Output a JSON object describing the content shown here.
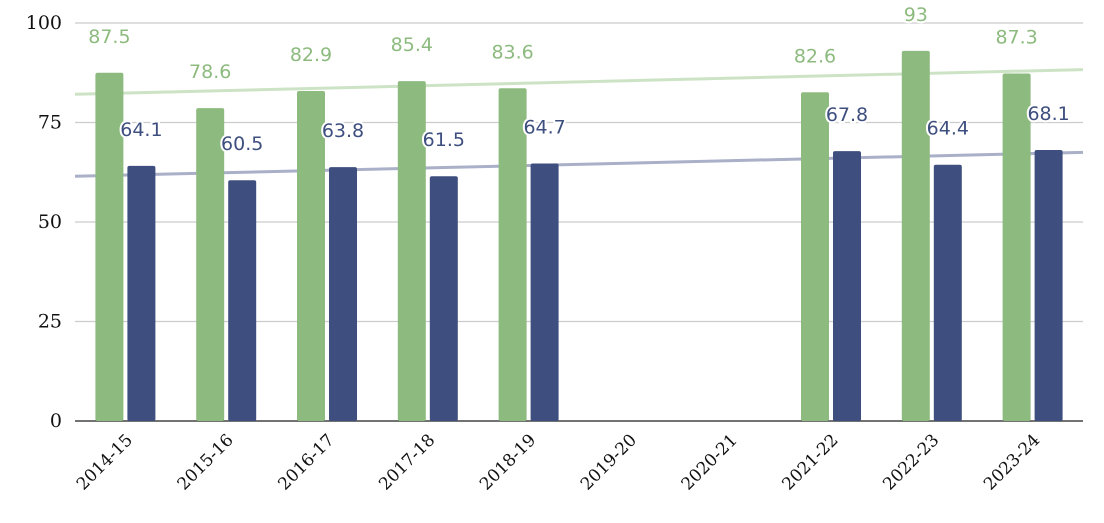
{
  "chart_data": {
    "type": "bar",
    "categories": [
      "2014-15",
      "2015-16",
      "2016-17",
      "2017-18",
      "2018-19",
      "2019-20",
      "2020-21",
      "2021-22",
      "2022-23",
      "2023-24"
    ],
    "series": [
      {
        "color": "#8dbb7f",
        "label_color": "#8dbb7f",
        "values": [
          87.5,
          78.6,
          82.9,
          85.4,
          83.6,
          null,
          null,
          82.6,
          93,
          87.3
        ],
        "labels": [
          "87.5",
          "78.6",
          "82.9",
          "85.4",
          "83.6",
          "",
          "",
          "82.6",
          "93",
          "87.3"
        ],
        "trendline": {
          "start": 82.1,
          "end": 88.3,
          "color": "#cde3c6"
        }
      },
      {
        "color": "#3e4f7f",
        "label_color": "#3e4f7f",
        "values": [
          64.1,
          60.5,
          63.8,
          61.5,
          64.7,
          null,
          null,
          67.8,
          64.4,
          68.1
        ],
        "labels": [
          "64.1",
          "60.5",
          "63.8",
          "61.5",
          "64.7",
          "",
          "",
          "67.8",
          "64.4",
          "68.1"
        ],
        "trendline": {
          "start": 61.5,
          "end": 67.5,
          "color": "#a9b0c8"
        }
      }
    ],
    "ylim": [
      0,
      100
    ],
    "yticks": [
      "0",
      "25",
      "50",
      "75",
      "100"
    ],
    "grid": true,
    "legend": "none"
  }
}
